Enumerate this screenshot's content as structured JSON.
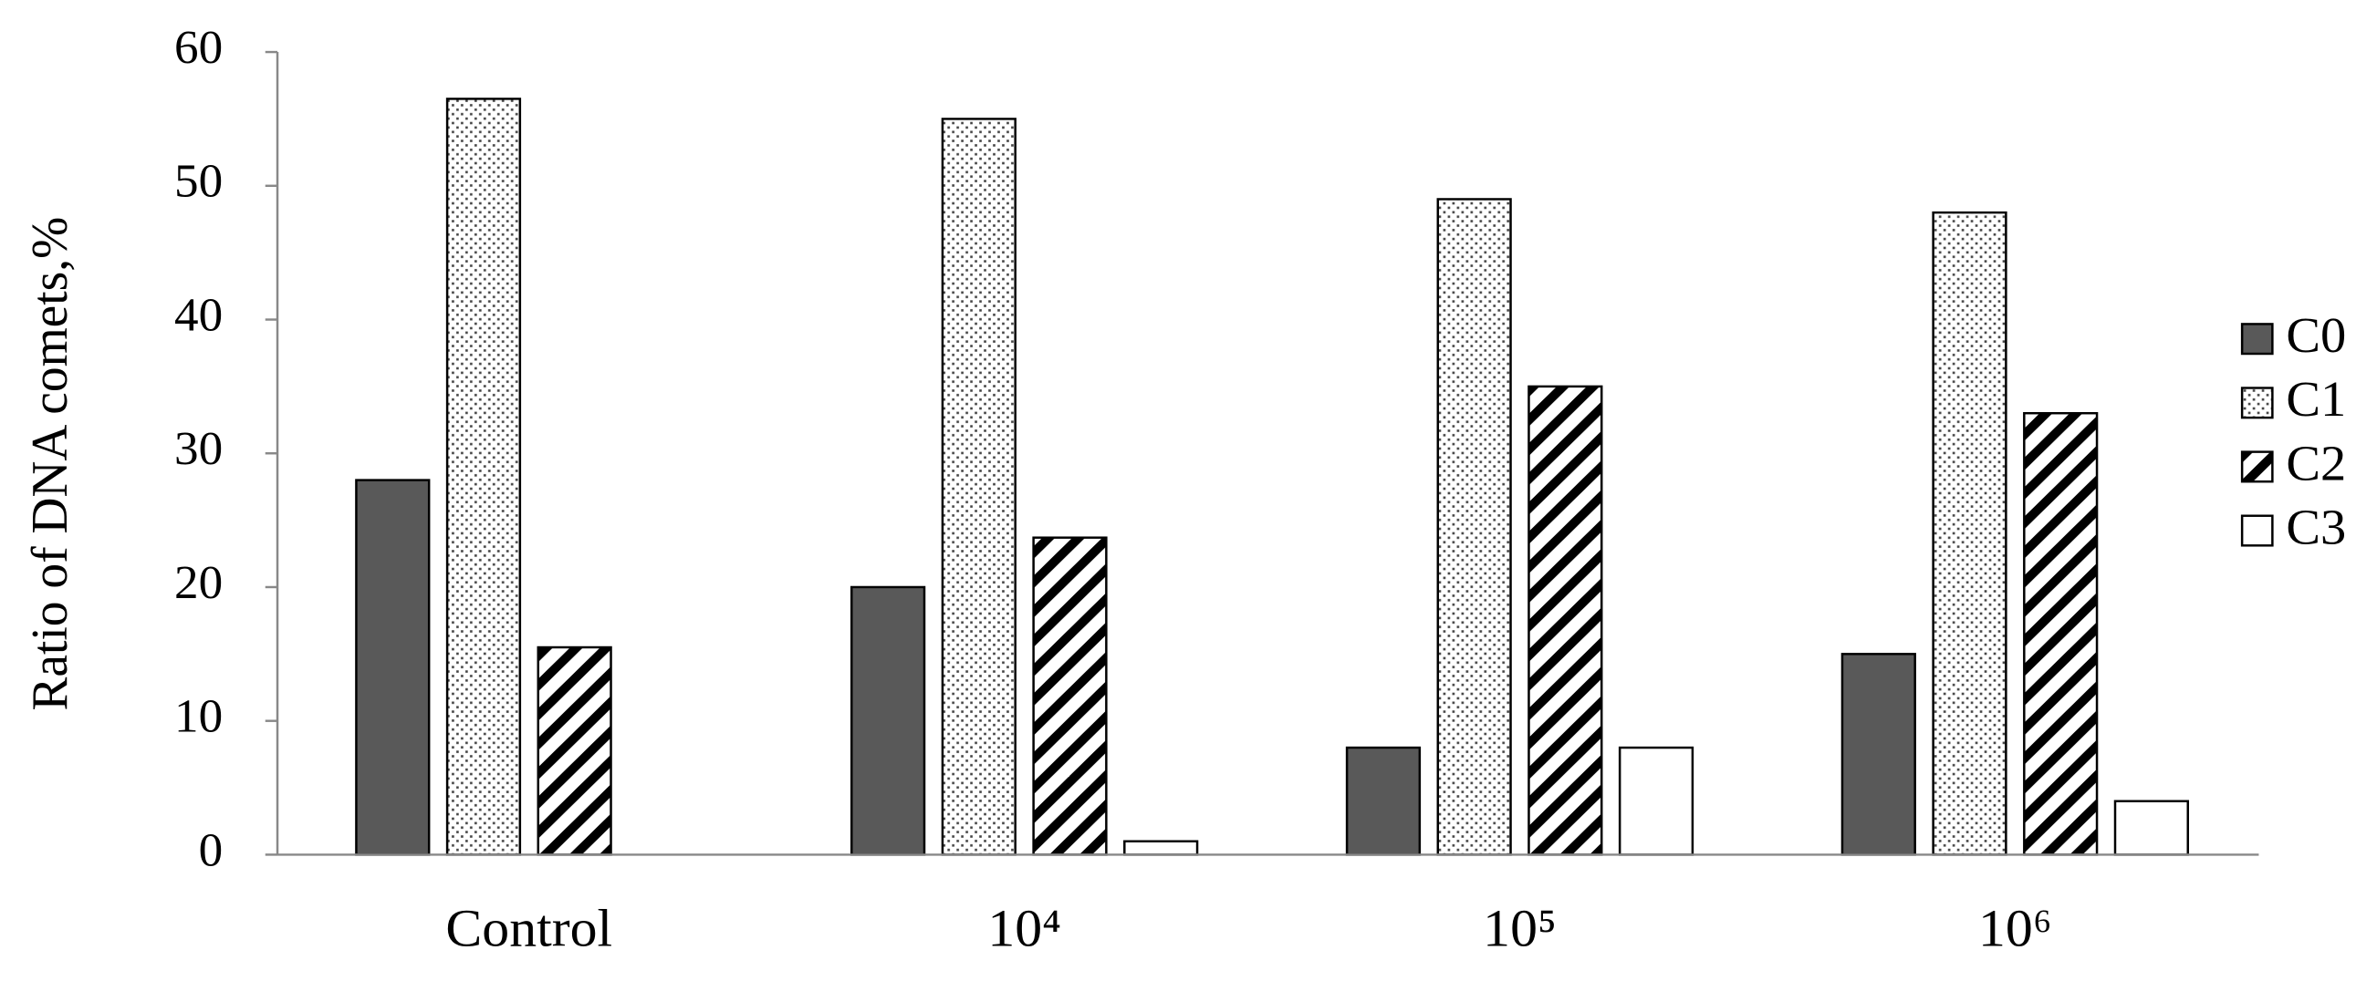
{
  "chart_data": {
    "type": "bar",
    "ylabel": "Ratio of DNA comets,%",
    "categories": [
      "Control",
      "10⁴",
      "10⁵",
      "10⁶"
    ],
    "series": [
      {
        "name": "C0",
        "color": "#595959",
        "pattern": "solid",
        "values": [
          28,
          20,
          8,
          15
        ]
      },
      {
        "name": "C1",
        "color": "#000000",
        "pattern": "dots",
        "values": [
          56.5,
          55,
          49,
          48
        ]
      },
      {
        "name": "C2",
        "color": "#000000",
        "pattern": "hatch",
        "values": [
          15.5,
          23.7,
          35,
          33
        ]
      },
      {
        "name": "C3",
        "color": "#ffffff",
        "pattern": "none",
        "values": [
          0,
          1,
          8,
          4
        ]
      }
    ],
    "ylim": [
      0,
      60
    ],
    "yticks": [
      0,
      10,
      20,
      30,
      40,
      50,
      60
    ],
    "legend": "right"
  }
}
